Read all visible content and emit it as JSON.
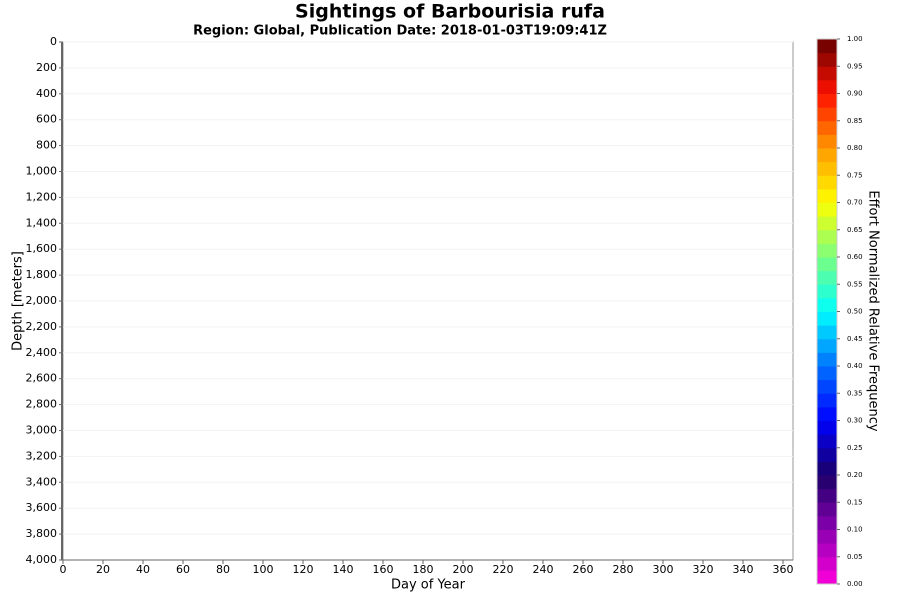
{
  "chart_data": {
    "type": "heatmap",
    "title": "Sightings of Barbourisia rufa",
    "subtitle": "Region: Global, Publication Date: 2018-01-03T19:09:41Z",
    "x_label": "Day of Year",
    "y_label": "Depth [meters]",
    "xlim": [
      0,
      365
    ],
    "xticks": [
      0,
      20,
      40,
      60,
      80,
      100,
      120,
      140,
      160,
      180,
      200,
      220,
      240,
      260,
      280,
      300,
      320,
      340,
      360
    ],
    "ylim": [
      0,
      4000
    ],
    "y_inverted": true,
    "yticks": [
      0,
      200,
      400,
      600,
      800,
      {
        "value": 1000,
        "label": "1,000"
      },
      {
        "value": 1200,
        "label": "1,200"
      },
      {
        "value": 1400,
        "label": "1,400"
      },
      {
        "value": 1600,
        "label": "1,600"
      },
      {
        "value": 1800,
        "label": "1,800"
      },
      {
        "value": 2000,
        "label": "2,000"
      },
      {
        "value": 2200,
        "label": "2,200"
      },
      {
        "value": 2400,
        "label": "2,400"
      },
      {
        "value": 2600,
        "label": "2,600"
      },
      {
        "value": 2800,
        "label": "2,800"
      },
      {
        "value": 3000,
        "label": "3,000"
      },
      {
        "value": 3200,
        "label": "3,200"
      },
      {
        "value": 3400,
        "label": "3,400"
      },
      {
        "value": 3600,
        "label": "3,600"
      },
      {
        "value": 3800,
        "label": "3,800"
      },
      {
        "value": 4000,
        "label": "4,000"
      }
    ],
    "grid": true,
    "colorbar_label": "Effort Normalized Relative Frequency",
    "colorbar_lim": [
      0,
      1
    ],
    "colorbar_ticks": [
      {
        "value": 0,
        "label": "0.00"
      },
      {
        "value": 0.05,
        "label": "0.05"
      },
      {
        "value": 0.1,
        "label": "0.10"
      },
      {
        "value": 0.15,
        "label": "0.15"
      },
      {
        "value": 0.2,
        "label": "0.20"
      },
      {
        "value": 0.25,
        "label": "0.25"
      },
      {
        "value": 0.3,
        "label": "0.30"
      },
      {
        "value": 0.35,
        "label": "0.35"
      },
      {
        "value": 0.4,
        "label": "0.40"
      },
      {
        "value": 0.45,
        "label": "0.45"
      },
      {
        "value": 0.5,
        "label": "0.50"
      },
      {
        "value": 0.55,
        "label": "0.55"
      },
      {
        "value": 0.6,
        "label": "0.60"
      },
      {
        "value": 0.65,
        "label": "0.65"
      },
      {
        "value": 0.7,
        "label": "0.70"
      },
      {
        "value": 0.75,
        "label": "0.75"
      },
      {
        "value": 0.8,
        "label": "0.80"
      },
      {
        "value": 0.85,
        "label": "0.85"
      },
      {
        "value": 0.9,
        "label": "0.90"
      },
      {
        "value": 0.95,
        "label": "0.95"
      },
      {
        "value": 1,
        "label": "1.00"
      }
    ],
    "colormap": [
      "#ff00dd",
      "#8a00b0",
      "#1a0066",
      "#0000ff",
      "#0070ff",
      "#00ffff",
      "#7aff80",
      "#ffff00",
      "#ff9900",
      "#ff1100",
      "#640000"
    ]
  }
}
